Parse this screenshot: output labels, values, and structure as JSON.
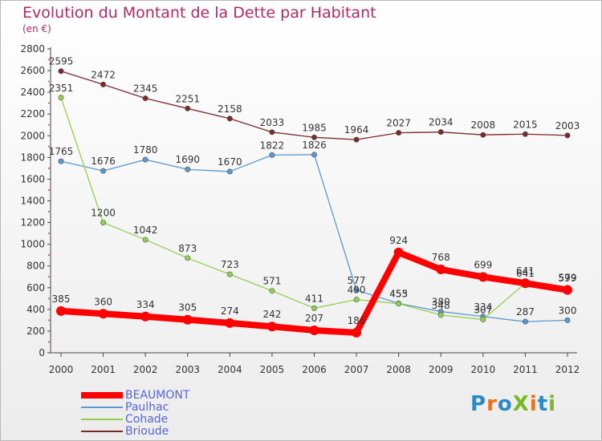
{
  "title": "Evolution du Montant de la Dette par Habitant",
  "subtitle": "(en €)",
  "logo": {
    "text": "ProXiti",
    "colors": [
      "#2d88c8",
      "#e8731f",
      "#2d88c8",
      "#7ab827",
      "#e8731f",
      "#2d88c8",
      "#7ab827"
    ]
  },
  "chart_data": {
    "type": "line",
    "x": [
      "2000",
      "2001",
      "2002",
      "2003",
      "2004",
      "2005",
      "2006",
      "2007",
      "2008",
      "2009",
      "2010",
      "2011",
      "2012"
    ],
    "ylim": [
      0,
      2800
    ],
    "yticks": [
      0,
      200,
      400,
      600,
      800,
      1000,
      1200,
      1400,
      1600,
      1800,
      2000,
      2200,
      2400,
      2600,
      2800
    ],
    "grid": false,
    "legend_position": "bottom-left",
    "series": [
      {
        "name": "Brioude",
        "color": "#7a2a2a",
        "values": [
          2595,
          2472,
          2345,
          2251,
          2158,
          2033,
          1985,
          1964,
          2027,
          2034,
          2008,
          2015,
          2003
        ]
      },
      {
        "name": "Paulhac",
        "color": "#5b9ad0",
        "values": [
          1765,
          1676,
          1780,
          1690,
          1670,
          1822,
          1826,
          577,
          455,
          380,
          334,
          287,
          300
        ]
      },
      {
        "name": "Cohade",
        "color": "#92d050",
        "values": [
          2351,
          1200,
          1042,
          873,
          723,
          571,
          411,
          490,
          453,
          348,
          307,
          641,
          599
        ]
      },
      {
        "name": "BEAUMONT",
        "color": "#ff0000",
        "values": [
          385,
          360,
          334,
          305,
          274,
          242,
          207,
          186,
          924,
          768,
          699,
          641,
          579
        ]
      }
    ],
    "legend_order": [
      "BEAUMONT",
      "Paulhac",
      "Cohade",
      "Brioude"
    ]
  }
}
